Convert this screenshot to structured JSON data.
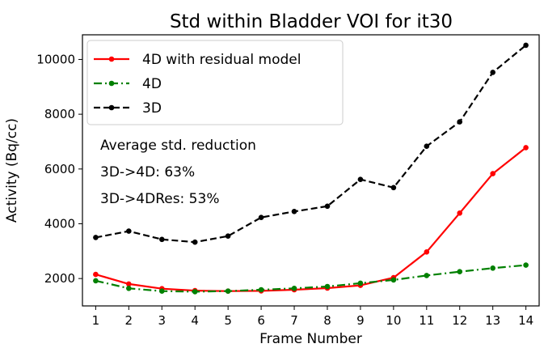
{
  "chart_data": {
    "type": "line",
    "title": "Std within Bladder VOI for it30",
    "xlabel": "Frame Number",
    "ylabel": "Activity (Bq/cc)",
    "x": [
      1,
      2,
      3,
      4,
      5,
      6,
      7,
      8,
      9,
      10,
      11,
      12,
      13,
      14
    ],
    "xlim": [
      0.6,
      14.4
    ],
    "ylim": [
      1000,
      10900
    ],
    "xticks": [
      1,
      2,
      3,
      4,
      5,
      6,
      7,
      8,
      9,
      10,
      11,
      12,
      13,
      14
    ],
    "yticks": [
      2000,
      4000,
      6000,
      8000,
      10000
    ],
    "grid": false,
    "legend_position": "top-left",
    "series": [
      {
        "name": "4D with residual model",
        "color": "#ff0000",
        "line_style": "solid",
        "values": [
          2150,
          1800,
          1630,
          1560,
          1540,
          1550,
          1590,
          1650,
          1750,
          2030,
          2970,
          4390,
          5830,
          6780
        ]
      },
      {
        "name": "4D",
        "color": "#008000",
        "line_style": "dashdot",
        "values": [
          1920,
          1640,
          1540,
          1520,
          1540,
          1590,
          1640,
          1710,
          1830,
          1950,
          2110,
          2250,
          2380,
          2490
        ]
      },
      {
        "name": "3D",
        "color": "#000000",
        "line_style": "dashed",
        "values": [
          3500,
          3730,
          3430,
          3330,
          3550,
          4230,
          4450,
          4640,
          5620,
          5320,
          6830,
          7720,
          9530,
          10520
        ]
      }
    ],
    "annotations": [
      "Average std. reduction",
      "3D->4D: 63%",
      "3D->4DRes: 53%"
    ]
  }
}
